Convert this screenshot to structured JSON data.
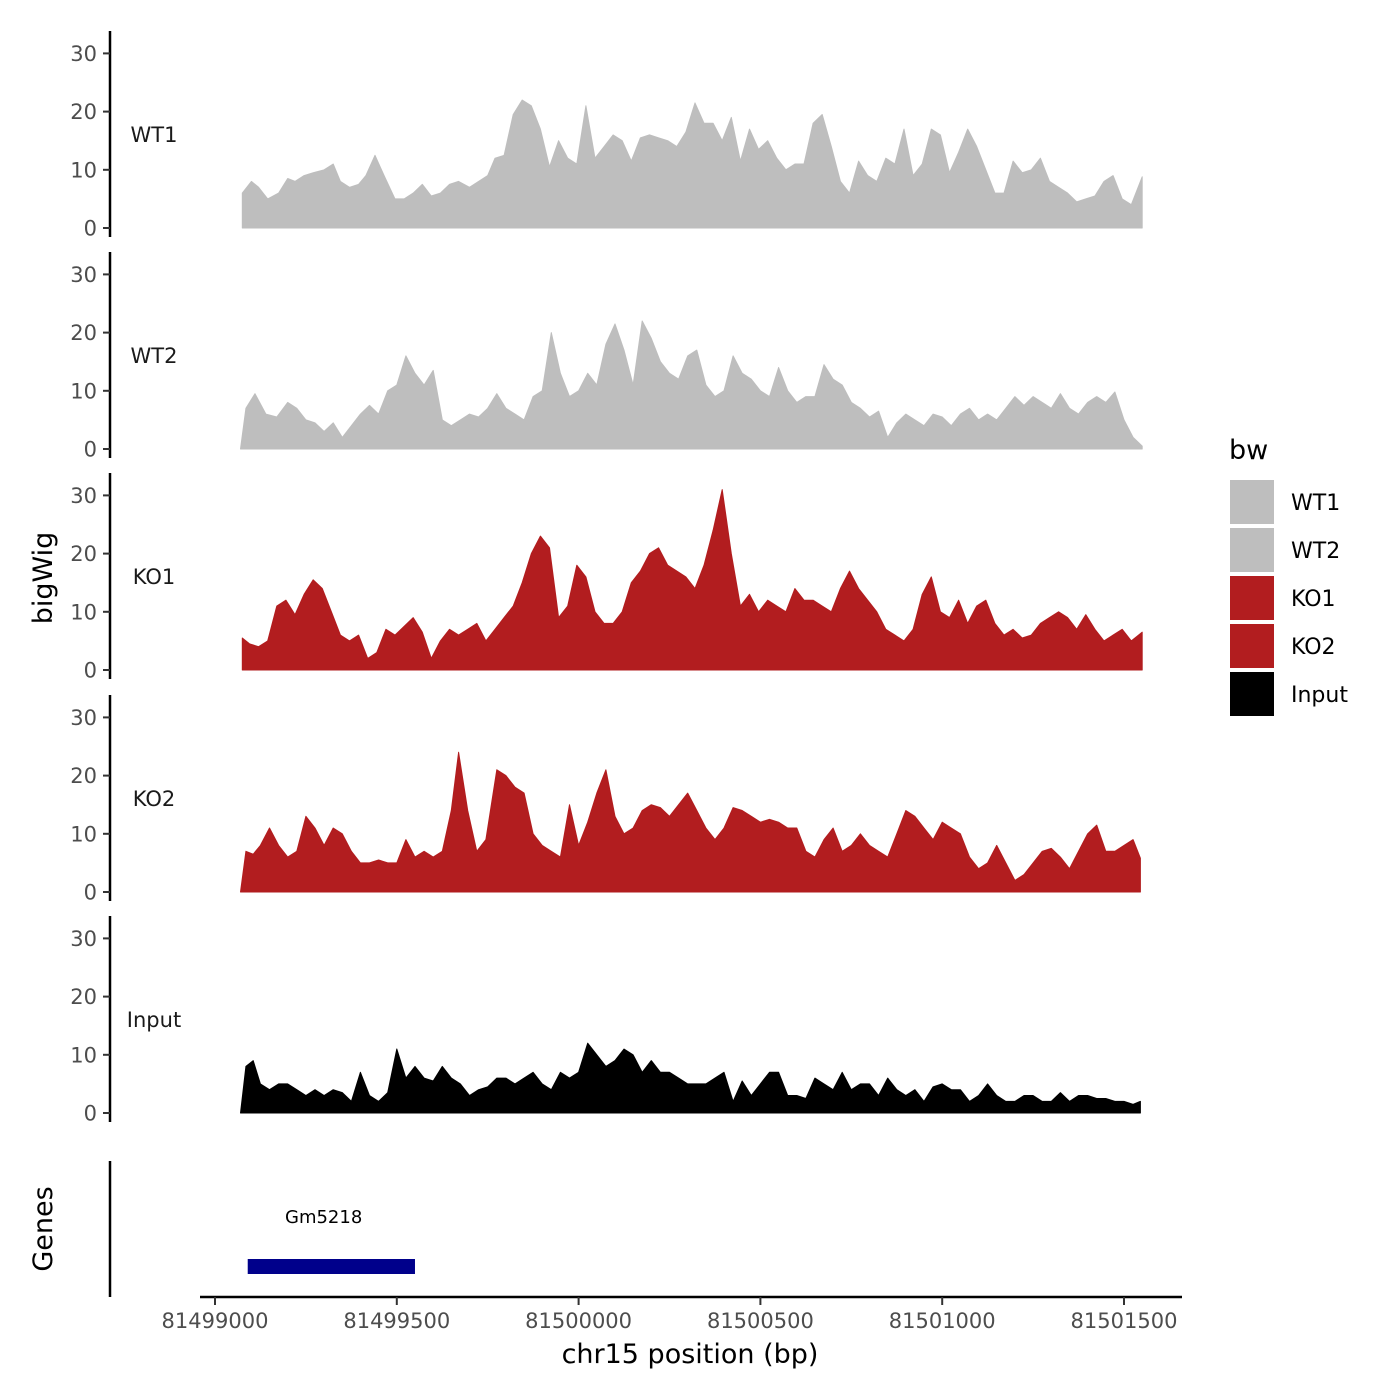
{
  "chart_data": {
    "type": "area",
    "region": "chr15",
    "xlabel": "chr15 position (bp)",
    "ylabel": "bigWig",
    "genes_label": "Genes",
    "xlim": [
      81498950,
      81501725
    ],
    "ylim": [
      0,
      32
    ],
    "xticks": [
      81499000,
      81499500,
      81500000,
      81500500,
      81501000,
      81501500
    ],
    "xtick_labels": [
      "81499000",
      "81499500",
      "81500000",
      "81500500",
      "81501000",
      "81501500"
    ],
    "yticks": [
      0,
      10,
      20,
      30
    ],
    "ytick_labels": [
      "0",
      "10",
      "20",
      "30"
    ],
    "legend": {
      "title": "bw",
      "position": "right",
      "entries": [
        {
          "label": "WT1",
          "color": "#bebebe"
        },
        {
          "label": "WT2",
          "color": "#bebebe"
        },
        {
          "label": "KO1",
          "color": "#b21d1f"
        },
        {
          "label": "KO2",
          "color": "#b21d1f"
        },
        {
          "label": "Input",
          "color": "#000000"
        }
      ]
    },
    "series": [
      {
        "name": "WT1",
        "color": "#bebebe",
        "x": [
          81499075,
          81499100,
          81499120,
          81499145,
          81499175,
          81499200,
          81499220,
          81499245,
          81499270,
          81499300,
          81499325,
          81499345,
          81499370,
          81499395,
          81499415,
          81499440,
          81499465,
          81499495,
          81499520,
          81499545,
          81499570,
          81499595,
          81499620,
          81499645,
          81499670,
          81499700,
          81499725,
          81499750,
          81499770,
          81499795,
          81499820,
          81499845,
          81499870,
          81499895,
          81499920,
          81499945,
          81499970,
          81499995,
          81500020,
          81500045,
          81500070,
          81500095,
          81500120,
          81500145,
          81500170,
          81500195,
          81500220,
          81500245,
          81500270,
          81500295,
          81500320,
          81500345,
          81500370,
          81500395,
          81500420,
          81500445,
          81500470,
          81500495,
          81500520,
          81500545,
          81500570,
          81500595,
          81500620,
          81500645,
          81500670,
          81500695,
          81500720,
          81500745,
          81500770,
          81500795,
          81500820,
          81500845,
          81500870,
          81500895,
          81500920,
          81500945,
          81500970,
          81500995,
          81501020,
          81501045,
          81501070,
          81501095,
          81501120,
          81501145,
          81501170,
          81501195,
          81501220,
          81501245,
          81501270,
          81501295,
          81501320,
          81501345,
          81501370,
          81501395,
          81501420,
          81501445,
          81501470,
          81501495,
          81501520,
          81501550
        ],
        "values": [
          6,
          8,
          7,
          5,
          6,
          8.5,
          8,
          9,
          9.5,
          10,
          11,
          8,
          7,
          7.5,
          9,
          12.5,
          9,
          5,
          5,
          6,
          7.5,
          5.5,
          6,
          7.5,
          8,
          7,
          8,
          9,
          12,
          12.5,
          19.5,
          22,
          21,
          17,
          10.5,
          15,
          12,
          11,
          21,
          12,
          14,
          16,
          15,
          11.5,
          15.5,
          16,
          15.5,
          15,
          14,
          16.5,
          21.5,
          18,
          18,
          15,
          19,
          11.5,
          17,
          13.5,
          15,
          12,
          10,
          11,
          11,
          18,
          19.5,
          14,
          8,
          6,
          11.5,
          9,
          8,
          12,
          11,
          17,
          9,
          11,
          17,
          16,
          9.5,
          13,
          17,
          14,
          10,
          6,
          6,
          11.5,
          9.5,
          10,
          12,
          8,
          7,
          6,
          4.5,
          5,
          5.5,
          8,
          9,
          5,
          4,
          8.8
        ]
      },
      {
        "name": "WT2",
        "color": "#bebebe",
        "x": [
          81499070,
          81499085,
          81499110,
          81499140,
          81499170,
          81499200,
          81499225,
          81499250,
          81499275,
          81499300,
          81499325,
          81499350,
          81499375,
          81499400,
          81499425,
          81499450,
          81499475,
          81499500,
          81499525,
          81499550,
          81499575,
          81499600,
          81499625,
          81499650,
          81499675,
          81499700,
          81499725,
          81499750,
          81499775,
          81499800,
          81499825,
          81499850,
          81499875,
          81499900,
          81499925,
          81499950,
          81499975,
          81500000,
          81500025,
          81500050,
          81500075,
          81500100,
          81500125,
          81500150,
          81500175,
          81500200,
          81500225,
          81500250,
          81500275,
          81500300,
          81500325,
          81500350,
          81500375,
          81500400,
          81500425,
          81500450,
          81500475,
          81500500,
          81500525,
          81500550,
          81500575,
          81500600,
          81500625,
          81500650,
          81500675,
          81500700,
          81500725,
          81500750,
          81500775,
          81500800,
          81500825,
          81500850,
          81500875,
          81500900,
          81500925,
          81500950,
          81500975,
          81501000,
          81501025,
          81501050,
          81501075,
          81501100,
          81501125,
          81501150,
          81501175,
          81501200,
          81501225,
          81501250,
          81501275,
          81501300,
          81501325,
          81501350,
          81501375,
          81501400,
          81501425,
          81501450,
          81501475,
          81501500,
          81501525,
          81501550
        ],
        "values": [
          0,
          7,
          9.5,
          6,
          5.5,
          8,
          7,
          5,
          4.5,
          3,
          4.5,
          2,
          4,
          6,
          7.5,
          6,
          10,
          11,
          16,
          13,
          11,
          13.5,
          5,
          4,
          5,
          6,
          5.5,
          7,
          9.5,
          7,
          6,
          5,
          9,
          10,
          20,
          13,
          9,
          10,
          13,
          11,
          18,
          21.5,
          17,
          11,
          22,
          19,
          15,
          13,
          12,
          16,
          17,
          11,
          9,
          10,
          16,
          13,
          12,
          10,
          9,
          14,
          10,
          8,
          9,
          9,
          14.5,
          12,
          11,
          8,
          7,
          5.5,
          6.5,
          2,
          4.5,
          6,
          5,
          4,
          6,
          5.5,
          4,
          6,
          7,
          5,
          6,
          5,
          7,
          9,
          7.5,
          9,
          8,
          7,
          9.5,
          7,
          6,
          8,
          9,
          8,
          9.8,
          5,
          2,
          0.5
        ]
      },
      {
        "name": "KO1",
        "color": "#b21d1f",
        "x": [
          81499075,
          81499095,
          81499120,
          81499145,
          81499170,
          81499195,
          81499220,
          81499245,
          81499270,
          81499295,
          81499320,
          81499345,
          81499370,
          81499395,
          81499420,
          81499445,
          81499470,
          81499495,
          81499520,
          81499545,
          81499570,
          81499595,
          81499620,
          81499645,
          81499670,
          81499695,
          81499720,
          81499745,
          81499770,
          81499795,
          81499820,
          81499845,
          81499870,
          81499895,
          81499920,
          81499945,
          81499970,
          81499995,
          81500020,
          81500045,
          81500070,
          81500095,
          81500120,
          81500145,
          81500170,
          81500195,
          81500220,
          81500245,
          81500270,
          81500295,
          81500320,
          81500345,
          81500370,
          81500395,
          81500420,
          81500445,
          81500470,
          81500495,
          81500520,
          81500545,
          81500570,
          81500595,
          81500620,
          81500645,
          81500670,
          81500695,
          81500720,
          81500745,
          81500770,
          81500795,
          81500820,
          81500845,
          81500870,
          81500895,
          81500920,
          81500945,
          81500970,
          81500995,
          81501020,
          81501045,
          81501070,
          81501095,
          81501120,
          81501145,
          81501170,
          81501195,
          81501220,
          81501245,
          81501270,
          81501295,
          81501320,
          81501345,
          81501370,
          81501395,
          81501420,
          81501445,
          81501470,
          81501495,
          81501520,
          81501550
        ],
        "values": [
          5.5,
          4.5,
          4,
          5,
          11,
          12,
          9.5,
          13,
          15.5,
          14,
          10,
          6,
          5,
          6,
          2,
          3,
          7,
          6,
          7.5,
          9,
          6.5,
          2,
          5,
          7,
          6,
          7,
          8,
          5,
          7,
          9,
          11,
          15,
          20,
          23,
          21,
          9,
          11,
          18,
          16,
          10,
          8,
          8,
          10,
          15,
          17,
          20,
          21,
          18,
          17,
          16,
          14,
          18,
          24,
          31,
          20,
          11,
          13,
          10,
          12,
          11,
          10,
          14,
          12,
          12,
          11,
          10,
          14,
          17,
          14,
          12,
          10,
          7,
          6,
          5,
          7,
          13,
          16,
          10,
          9,
          12,
          8,
          11,
          12,
          8,
          6,
          7,
          5.5,
          6,
          8,
          9,
          10,
          9,
          7,
          9.5,
          7,
          5,
          6,
          7,
          5,
          6.5
        ]
      },
      {
        "name": "KO2",
        "color": "#b21d1f",
        "x": [
          81499070,
          81499085,
          81499105,
          81499125,
          81499150,
          81499175,
          81499200,
          81499225,
          81499250,
          81499275,
          81499300,
          81499325,
          81499350,
          81499375,
          81499400,
          81499425,
          81499450,
          81499475,
          81499500,
          81499525,
          81499550,
          81499575,
          81499600,
          81499625,
          81499650,
          81499670,
          81499695,
          81499720,
          81499745,
          81499775,
          81499800,
          81499825,
          81499850,
          81499875,
          81499900,
          81499925,
          81499950,
          81499975,
          81500000,
          81500025,
          81500050,
          81500075,
          81500100,
          81500125,
          81500150,
          81500175,
          81500200,
          81500225,
          81500250,
          81500275,
          81500300,
          81500325,
          81500350,
          81500375,
          81500400,
          81500425,
          81500450,
          81500475,
          81500500,
          81500525,
          81500550,
          81500575,
          81500600,
          81500625,
          81500650,
          81500675,
          81500700,
          81500725,
          81500750,
          81500775,
          81500800,
          81500825,
          81500850,
          81500875,
          81500900,
          81500925,
          81500950,
          81500975,
          81501000,
          81501025,
          81501050,
          81501075,
          81501100,
          81501125,
          81501150,
          81501175,
          81501200,
          81501225,
          81501250,
          81501275,
          81501300,
          81501325,
          81501350,
          81501375,
          81501400,
          81501425,
          81501450,
          81501475,
          81501500,
          81501525,
          81501545
        ],
        "values": [
          0,
          7,
          6.5,
          8,
          11,
          8,
          6,
          7,
          13,
          11,
          8,
          11,
          10,
          7,
          5,
          5,
          5.5,
          5,
          5,
          9,
          6,
          7,
          6,
          7,
          14,
          24,
          14,
          7,
          9,
          21,
          20,
          18,
          17,
          10,
          8,
          7,
          6,
          15,
          8,
          12,
          17,
          21,
          13,
          10,
          11,
          14,
          15,
          14.5,
          13,
          15,
          17,
          14,
          11,
          9,
          11,
          14.5,
          14,
          13,
          12,
          12.5,
          12,
          11,
          11,
          7,
          6,
          9,
          11,
          7,
          8,
          10,
          8,
          7,
          6,
          10,
          14,
          13,
          11,
          9,
          12,
          11,
          10,
          6,
          4,
          5,
          8,
          5,
          2,
          3,
          5,
          7,
          7.5,
          6,
          4,
          7,
          10,
          11.5,
          7,
          7,
          8,
          9,
          5.8
        ]
      },
      {
        "name": "Input",
        "color": "#000000",
        "x": [
          81499070,
          81499085,
          81499105,
          81499125,
          81499150,
          81499175,
          81499200,
          81499225,
          81499250,
          81499275,
          81499300,
          81499325,
          81499350,
          81499375,
          81499400,
          81499425,
          81499450,
          81499475,
          81499500,
          81499525,
          81499550,
          81499575,
          81499600,
          81499625,
          81499650,
          81499675,
          81499700,
          81499725,
          81499750,
          81499775,
          81499800,
          81499825,
          81499850,
          81499875,
          81499900,
          81499925,
          81499950,
          81499975,
          81500000,
          81500025,
          81500050,
          81500075,
          81500100,
          81500125,
          81500150,
          81500175,
          81500200,
          81500225,
          81500250,
          81500275,
          81500300,
          81500325,
          81500350,
          81500375,
          81500400,
          81500425,
          81500450,
          81500475,
          81500500,
          81500525,
          81500550,
          81500575,
          81500600,
          81500625,
          81500650,
          81500675,
          81500700,
          81500725,
          81500750,
          81500775,
          81500800,
          81500825,
          81500850,
          81500875,
          81500900,
          81500925,
          81500950,
          81500975,
          81501000,
          81501025,
          81501050,
          81501075,
          81501100,
          81501125,
          81501150,
          81501175,
          81501200,
          81501225,
          81501250,
          81501275,
          81501300,
          81501325,
          81501350,
          81501375,
          81501400,
          81501425,
          81501450,
          81501475,
          81501500,
          81501525,
          81501545
        ],
        "values": [
          0,
          8,
          9,
          5,
          4,
          5,
          5,
          4,
          3,
          4,
          3,
          4,
          3.5,
          2,
          7,
          3,
          2,
          3.5,
          11,
          6,
          8,
          6,
          5.5,
          8,
          6,
          5,
          3,
          4,
          4.5,
          6,
          6,
          5,
          6,
          7,
          5,
          4,
          7,
          6,
          7,
          12,
          10,
          8,
          9,
          11,
          10,
          7,
          9,
          7,
          7,
          6,
          5,
          5,
          5,
          6,
          7,
          2,
          5.5,
          3,
          5,
          7,
          7,
          3,
          3,
          2.5,
          6,
          5,
          4,
          7,
          4,
          5,
          5,
          3,
          6,
          4,
          3,
          4,
          2,
          4.5,
          5,
          4,
          4,
          2,
          3,
          5,
          3,
          2,
          2,
          3,
          3,
          2,
          2,
          3.5,
          2,
          3,
          3,
          2.5,
          2.5,
          2,
          2,
          1.5,
          2
        ]
      }
    ],
    "genes": [
      {
        "name": "Gm5218",
        "start": 81499090,
        "end": 81499550,
        "color": "#00008b"
      }
    ]
  }
}
